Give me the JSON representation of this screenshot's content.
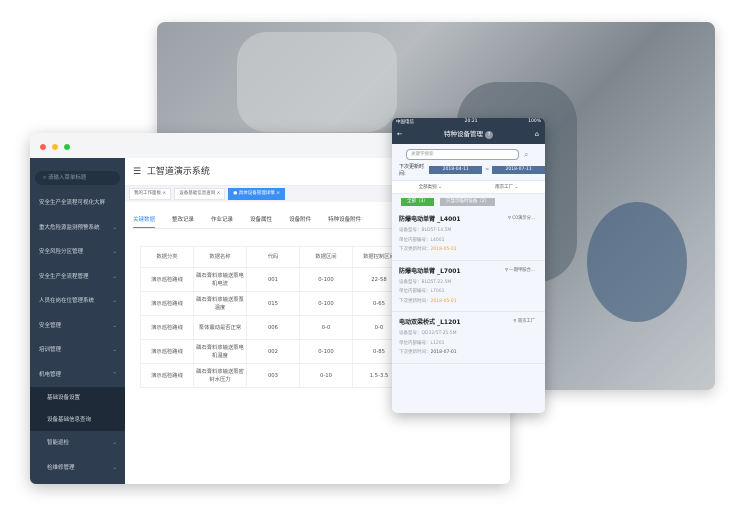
{
  "window": {
    "app_title": "工智道演示系统",
    "search_placeholder": "请输入菜单标题"
  },
  "sidebar": {
    "items": [
      {
        "label": "安全生产全流程可视化大屏",
        "chevron": ""
      },
      {
        "label": "重大危险源监测预警系统",
        "chevron": "⌄"
      },
      {
        "label": "安全风险分区管理",
        "chevron": "⌄"
      },
      {
        "label": "安全生产全流程管理",
        "chevron": "⌄"
      },
      {
        "label": "人员在岗在位管理系统",
        "chevron": "⌄"
      },
      {
        "label": "安全管理",
        "chevron": "⌄"
      },
      {
        "label": "培训管理",
        "chevron": "⌄"
      },
      {
        "label": "机电管理",
        "chevron": "⌃"
      }
    ],
    "sub_items": [
      {
        "label": "基础设备设置"
      },
      {
        "label": "设备基础信息查询"
      }
    ],
    "more_items": [
      {
        "label": "智能巡检",
        "chevron": "⌄"
      },
      {
        "label": "检维修管理",
        "chevron": "⌄"
      }
    ]
  },
  "tagbar": [
    {
      "label": "我的工作面板 ×"
    },
    {
      "label": "设备基础信息查询 ×"
    },
    {
      "label": "● 具体设备管理详情 ×"
    }
  ],
  "content_tabs": [
    {
      "label": "关键数据"
    },
    {
      "label": "整改记录"
    },
    {
      "label": "作业记录"
    },
    {
      "label": "设备属性"
    },
    {
      "label": "设备附件"
    },
    {
      "label": "特种设备附件"
    }
  ],
  "table": {
    "headers": [
      "数据分类",
      "数据名称",
      "代码",
      "数据区间",
      "数据控制区间"
    ],
    "rows": [
      [
        "演示巡检路线",
        "磷石膏料浆输送泵电机电流",
        "001",
        "0-100",
        "22-58"
      ],
      [
        "演示巡检路线",
        "磷石膏料浆输送泵泵温度",
        "015",
        "0-100",
        "0-65"
      ],
      [
        "演示巡检路线",
        "泵体震动是否正常",
        "006",
        "0-0",
        "0-0"
      ],
      [
        "演示巡检路线",
        "磷石膏料浆输送泵电机温度",
        "002",
        "0-100",
        "0-85"
      ],
      [
        "演示巡检路线",
        "磷石膏料浆输送泵密封水压力",
        "003",
        "0-10",
        "1.5-3.5"
      ]
    ]
  },
  "phone": {
    "carrier": "中国电信",
    "time": "20:21",
    "battery": "100%",
    "title": "特种设备管理",
    "help": "?",
    "back": "←",
    "home": "⌂",
    "search_placeholder": "关键字搜索",
    "date_label": "下次更新时间:",
    "date_from": "2018-04-11",
    "date_sep": "~",
    "date_to": "2018-07-11",
    "filter_type": "全部类别 ⌄",
    "filter_factory": "南京工厂 ⌄",
    "btn_all": "全部（3）",
    "btn_temp": "只显示临时设备（2）",
    "btn_all_color": "#4caf50",
    "btn_temp_color": "#b5b9bf",
    "cards": [
      {
        "title": "防爆电动单臂 _L4001",
        "location": "C0演示分...",
        "model": "设备型号：BLD5T-14.5M",
        "code": "单位内部编号：L4001",
        "next_label": "下次更新时间：",
        "next": "2018-05-01",
        "overdue": true
      },
      {
        "title": "防爆电动单臂 _L7001",
        "location": "一期甲胺合...",
        "model": "设备型号：BLD5T-22.5M",
        "code": "单位内部编号：L7001",
        "next_label": "下次更新时间：",
        "next": "2018-05-01",
        "overdue": true
      },
      {
        "title": "电动双梁桥式 _L1201",
        "location": "南京工厂",
        "model": "设备型号：QD32/5T-25.5M",
        "code": "单位内部编号：L1201",
        "next_label": "下次更新时间：",
        "next": "2018-07-01",
        "overdue": false
      }
    ]
  }
}
